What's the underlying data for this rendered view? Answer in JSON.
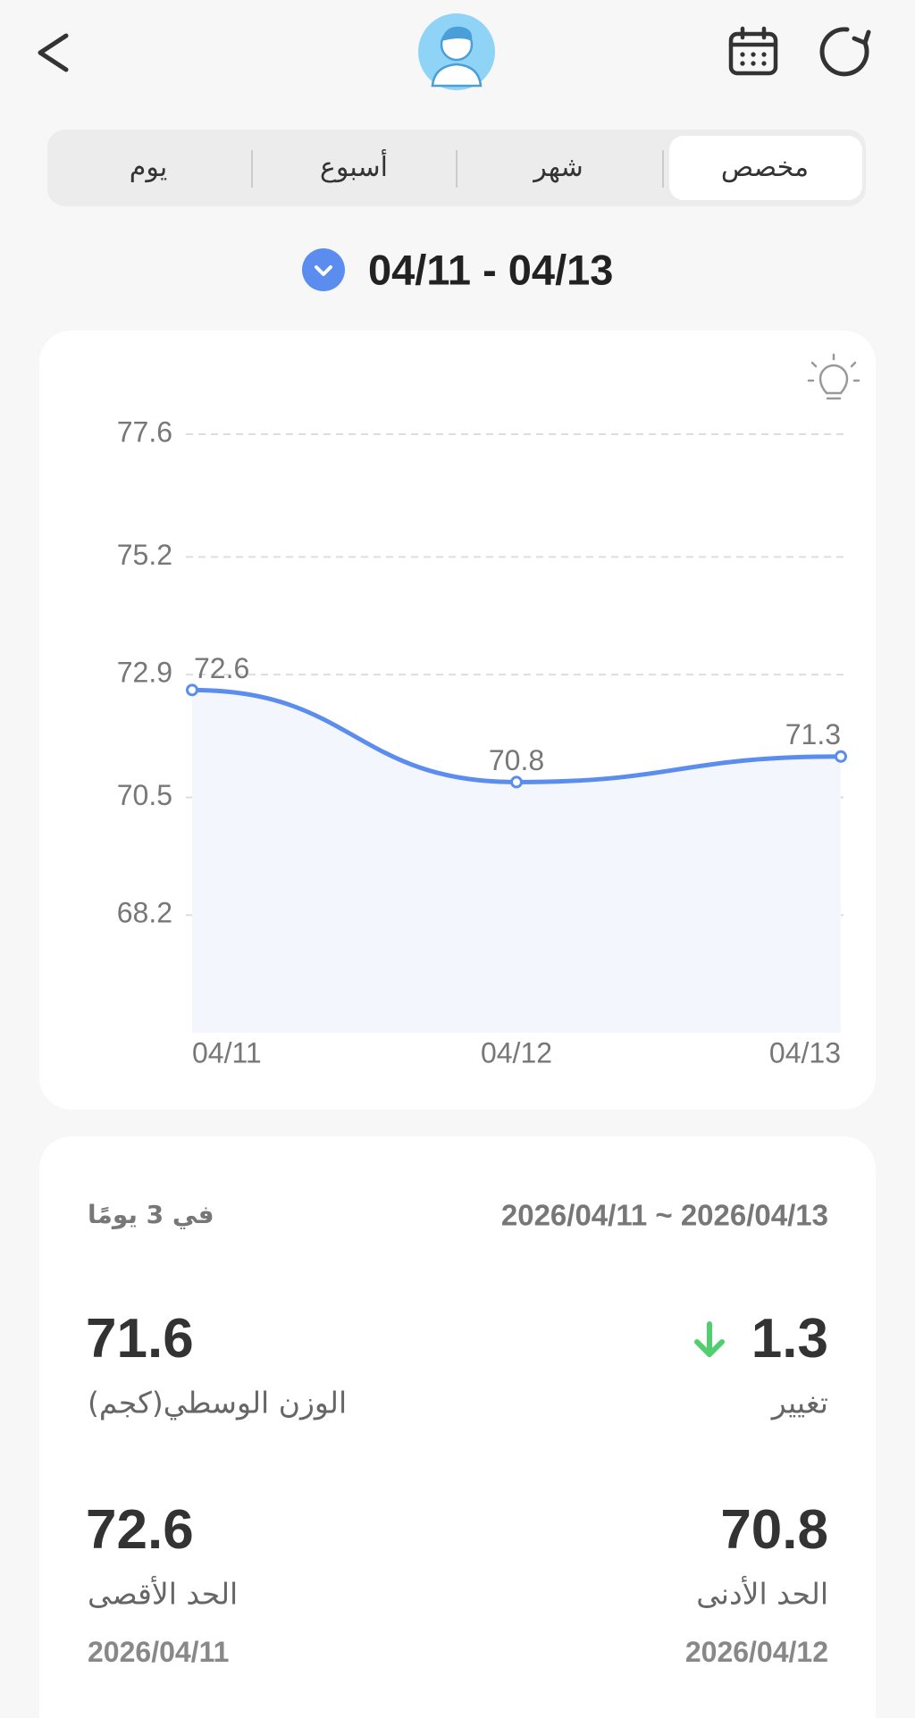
{
  "tabs": [
    "مخصص",
    "شهر",
    "أسبوع",
    "يوم"
  ],
  "date_range": "04/11 - 04/13",
  "chart_data": {
    "type": "line",
    "categories": [
      "04/11",
      "04/12",
      "04/13"
    ],
    "values": [
      72.6,
      70.8,
      71.3
    ],
    "color": "#5b8def",
    "ylim": [
      65.9,
      77.6
    ],
    "yticks": [
      68.2,
      70.5,
      72.9,
      75.2,
      77.6
    ],
    "grid": true
  },
  "summary": {
    "period": "في 3 يومًا",
    "range": "2026/04/11 ~ 2026/04/13",
    "change": {
      "value": 1.3,
      "label": "تغيير"
    },
    "average": {
      "value": 71.6,
      "label": "الوزن الوسطي(كجم)"
    },
    "minimum": {
      "value": 70.8,
      "label": "الحد الأدنى",
      "date": "2026/04/12"
    },
    "maximum": {
      "value": 72.6,
      "label": "الحد الأقصى",
      "date": "2026/04/11"
    }
  }
}
